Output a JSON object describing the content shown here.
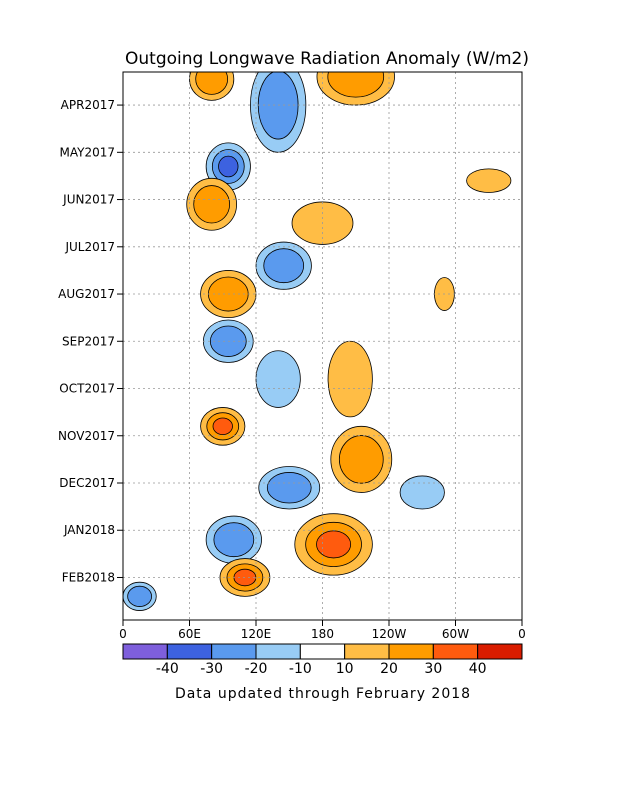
{
  "chart_data": {
    "type": "heatmap",
    "title": "Outgoing Longwave Radiation Anomaly (W/m2)",
    "xlabel": "",
    "ylabel": "",
    "x_ticks": [
      "0",
      "60E",
      "120E",
      "180",
      "120W",
      "60W",
      "0"
    ],
    "x_tick_lon": [
      0,
      60,
      120,
      180,
      240,
      300,
      360
    ],
    "y_ticks": [
      "APR2017",
      "MAY2017",
      "JUN2017",
      "JUL2017",
      "AUG2017",
      "SEP2017",
      "OCT2017",
      "NOV2017",
      "DEC2017",
      "JAN2018",
      "FEB2018"
    ],
    "y_tick_month": [
      1,
      2,
      3,
      4,
      5,
      6,
      7,
      8,
      9,
      10,
      11
    ],
    "xlim": [
      0,
      360
    ],
    "ylim": [
      0.3,
      11.9
    ],
    "grid": true,
    "colorbar": {
      "labels": [
        "-40",
        "-30",
        "-20",
        "-10",
        "10",
        "20",
        "30",
        "40"
      ],
      "colors": [
        "#7e5fdc",
        "#3d62e0",
        "#5a9aee",
        "#98ccf5",
        "#ffffff",
        "#ffbd45",
        "#ff9c00",
        "#ff5b0e",
        "#d91c00"
      ]
    },
    "features": [
      {
        "month": 0.45,
        "lon": 80,
        "w": 40,
        "h": 0.9,
        "v": 22
      },
      {
        "month": 1.0,
        "lon": 140,
        "w": 50,
        "h": 2.0,
        "v": -22
      },
      {
        "month": 0.4,
        "lon": 210,
        "w": 70,
        "h": 1.2,
        "v": 24
      },
      {
        "month": 2.3,
        "lon": 95,
        "w": 40,
        "h": 1.0,
        "v": -32
      },
      {
        "month": 3.1,
        "lon": 80,
        "w": 45,
        "h": 1.1,
        "v": 28
      },
      {
        "month": 3.5,
        "lon": 180,
        "w": 55,
        "h": 0.9,
        "v": 18
      },
      {
        "month": 4.4,
        "lon": 145,
        "w": 50,
        "h": 1.0,
        "v": -22
      },
      {
        "month": 5.0,
        "lon": 95,
        "w": 50,
        "h": 1.0,
        "v": 20
      },
      {
        "month": 6.0,
        "lon": 95,
        "w": 45,
        "h": 0.9,
        "v": -20
      },
      {
        "month": 6.8,
        "lon": 140,
        "w": 40,
        "h": 1.2,
        "v": -18
      },
      {
        "month": 7.8,
        "lon": 90,
        "w": 40,
        "h": 0.8,
        "v": 30
      },
      {
        "month": 6.8,
        "lon": 205,
        "w": 40,
        "h": 1.6,
        "v": 18
      },
      {
        "month": 8.5,
        "lon": 215,
        "w": 55,
        "h": 1.4,
        "v": 22
      },
      {
        "month": 9.1,
        "lon": 150,
        "w": 55,
        "h": 0.9,
        "v": -25
      },
      {
        "month": 10.2,
        "lon": 100,
        "w": 50,
        "h": 1.0,
        "v": -26
      },
      {
        "month": 10.3,
        "lon": 190,
        "w": 70,
        "h": 1.3,
        "v": 32
      },
      {
        "month": 11.0,
        "lon": 110,
        "w": 45,
        "h": 0.8,
        "v": 32
      },
      {
        "month": 11.4,
        "lon": 15,
        "w": 30,
        "h": 0.6,
        "v": -20
      },
      {
        "month": 9.2,
        "lon": 270,
        "w": 40,
        "h": 0.7,
        "v": -14
      },
      {
        "month": 2.6,
        "lon": 330,
        "w": 40,
        "h": 0.5,
        "v": 16
      },
      {
        "month": 5.0,
        "lon": 290,
        "w": 18,
        "h": 0.7,
        "v": 14
      }
    ]
  },
  "footer": "Data updated through February 2018"
}
